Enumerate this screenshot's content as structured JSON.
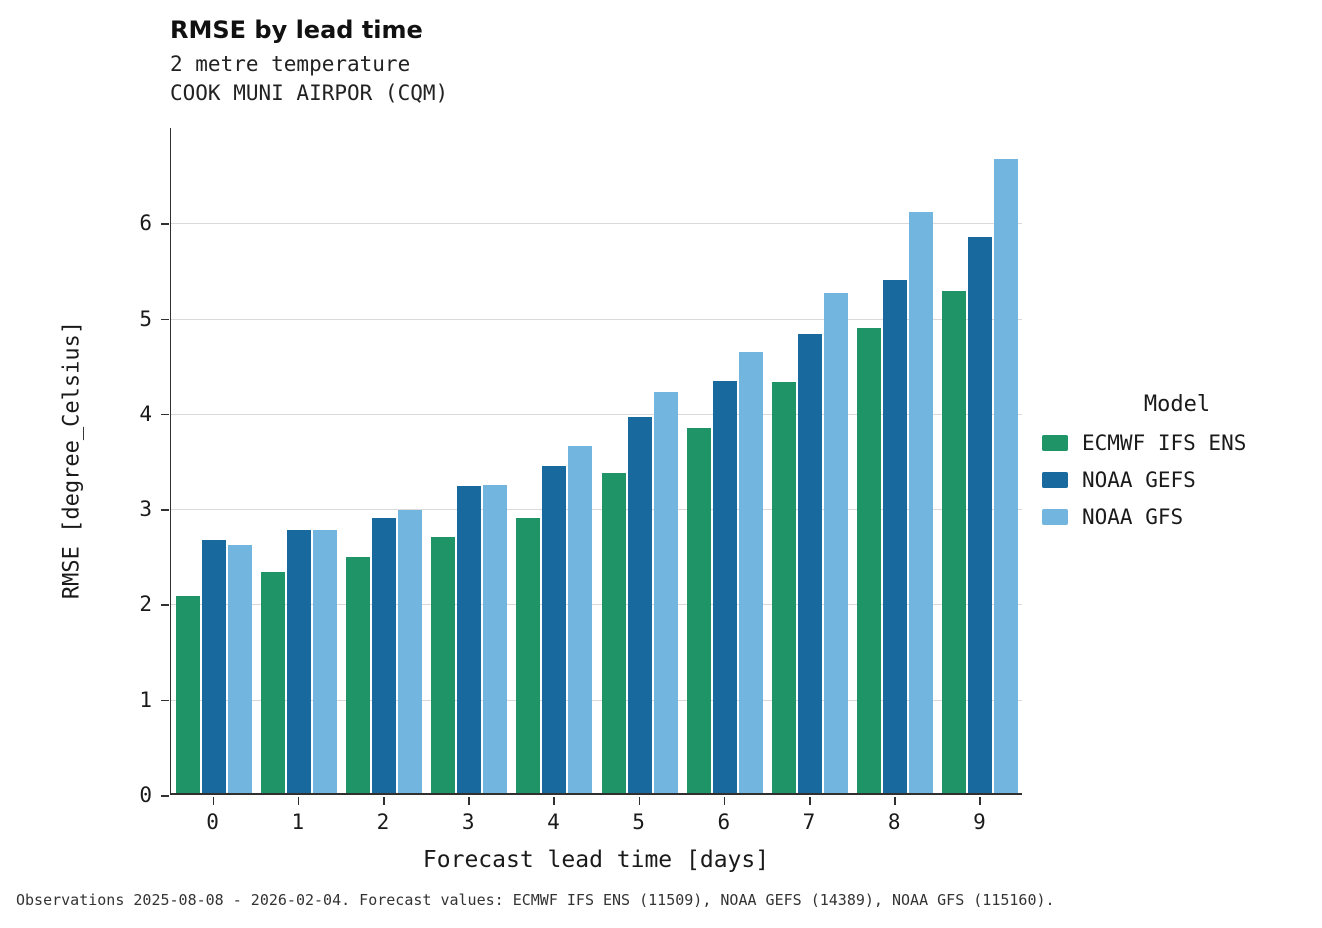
{
  "header": {
    "title": "RMSE by lead time",
    "subtitle1": "2 metre temperature",
    "subtitle2": "COOK MUNI AIRPOR (CQM)"
  },
  "footer": {
    "caption": "Observations 2025-08-08 - 2026-02-04. Forecast values: ECMWF IFS ENS (11509), NOAA GEFS (14389), NOAA GFS (115160)."
  },
  "legend": {
    "title": "Model"
  },
  "chart_data": {
    "type": "bar",
    "title": "RMSE by lead time",
    "subtitle": [
      "2 metre temperature",
      "COOK MUNI AIRPOR (CQM)"
    ],
    "xlabel": "Forecast lead time [days]",
    "ylabel": "RMSE [degree_Celsius]",
    "categories": [
      "0",
      "1",
      "2",
      "3",
      "4",
      "5",
      "6",
      "7",
      "8",
      "9"
    ],
    "series": [
      {
        "name": "ECMWF IFS ENS",
        "color": "#1e9467",
        "values": [
          2.07,
          2.32,
          2.48,
          2.69,
          2.89,
          3.36,
          3.83,
          4.31,
          4.88,
          5.27
        ]
      },
      {
        "name": "NOAA GEFS",
        "color": "#17699e",
        "values": [
          2.65,
          2.76,
          2.89,
          3.22,
          3.43,
          3.95,
          4.32,
          4.82,
          5.38,
          5.84
        ]
      },
      {
        "name": "NOAA GFS",
        "color": "#72b5de",
        "values": [
          2.6,
          2.76,
          2.97,
          3.23,
          3.64,
          4.21,
          4.63,
          5.25,
          6.1,
          6.65
        ]
      }
    ],
    "ylim": [
      0,
      7
    ],
    "yticks": [
      0,
      1,
      2,
      3,
      4,
      5,
      6
    ],
    "grid": "horizontal",
    "legend_title": "Model",
    "legend_position": "right"
  }
}
